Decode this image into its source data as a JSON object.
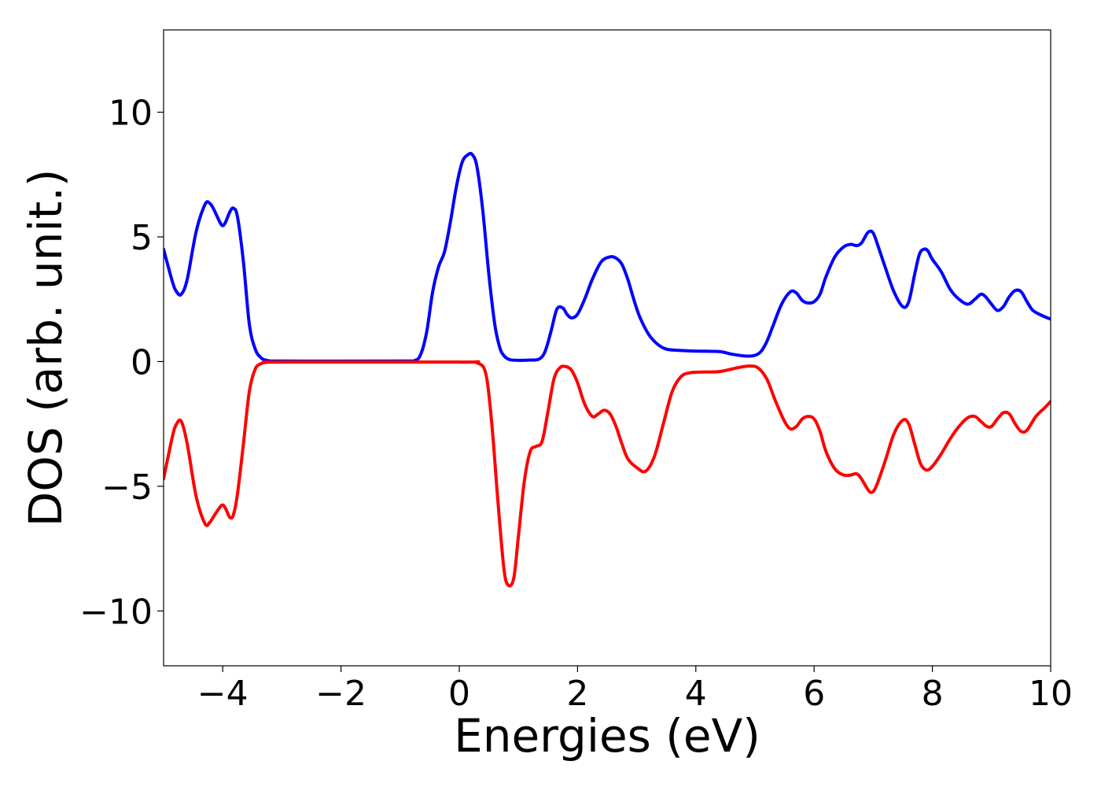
{
  "chart_data": {
    "type": "line",
    "xlabel": "Energies (eV)",
    "ylabel": "DOS (arb. unit.)",
    "xlim": [
      -5,
      10
    ],
    "ylim": [
      -12.2,
      13.3
    ],
    "xticks": [
      -4,
      -2,
      0,
      2,
      4,
      6,
      8,
      10
    ],
    "yticks": [
      -10,
      -5,
      0,
      5,
      10
    ],
    "xtick_labels": [
      "−4",
      "−2",
      "0",
      "2",
      "4",
      "6",
      "8",
      "10"
    ],
    "ytick_labels": [
      "−10",
      "−5",
      "0",
      "5",
      "10"
    ],
    "grid": false,
    "legend": "none",
    "series": [
      {
        "color": "#0000ff",
        "x": [
          -5.0,
          -4.85,
          -4.78,
          -4.7,
          -4.6,
          -4.45,
          -4.3,
          -4.22,
          -4.15,
          -4.05,
          -4.0,
          -3.95,
          -3.88,
          -3.82,
          -3.75,
          -3.65,
          -3.55,
          -3.45,
          -3.35,
          -3.25,
          -3.0,
          -1.0,
          -0.75,
          -0.65,
          -0.55,
          -0.45,
          -0.35,
          -0.25,
          -0.15,
          -0.05,
          0.05,
          0.15,
          0.22,
          0.3,
          0.4,
          0.5,
          0.6,
          0.68,
          0.75,
          0.85,
          1.0,
          1.2,
          1.35,
          1.45,
          1.55,
          1.65,
          1.75,
          1.82,
          1.9,
          2.0,
          2.12,
          2.25,
          2.4,
          2.55,
          2.65,
          2.75,
          2.85,
          2.95,
          3.05,
          3.2,
          3.35,
          3.5,
          3.7,
          4.0,
          4.4,
          4.6,
          4.85,
          5.0,
          5.1,
          5.2,
          5.3,
          5.45,
          5.6,
          5.7,
          5.8,
          5.9,
          6.0,
          6.1,
          6.2,
          6.35,
          6.5,
          6.62,
          6.72,
          6.8,
          6.85,
          6.92,
          7.0,
          7.1,
          7.2,
          7.35,
          7.5,
          7.6,
          7.7,
          7.78,
          7.85,
          7.92,
          8.0,
          8.15,
          8.3,
          8.45,
          8.6,
          8.72,
          8.82,
          8.9,
          9.0,
          9.1,
          9.2,
          9.3,
          9.4,
          9.5,
          9.6,
          9.7,
          9.85,
          10.0
        ],
        "y": [
          4.5,
          3.2,
          2.8,
          2.7,
          3.3,
          5.2,
          6.3,
          6.35,
          6.1,
          5.6,
          5.45,
          5.6,
          6.0,
          6.15,
          5.8,
          4.0,
          1.5,
          0.5,
          0.15,
          0.05,
          0.02,
          0.02,
          0.05,
          0.3,
          1.2,
          2.8,
          3.8,
          4.4,
          5.6,
          7.0,
          8.0,
          8.3,
          8.3,
          7.8,
          6.0,
          3.5,
          1.5,
          0.6,
          0.25,
          0.08,
          0.05,
          0.06,
          0.1,
          0.4,
          1.2,
          2.1,
          2.15,
          1.9,
          1.75,
          1.9,
          2.5,
          3.3,
          4.0,
          4.2,
          4.15,
          3.9,
          3.3,
          2.5,
          1.8,
          1.1,
          0.7,
          0.5,
          0.45,
          0.42,
          0.4,
          0.3,
          0.22,
          0.25,
          0.4,
          0.8,
          1.4,
          2.3,
          2.8,
          2.75,
          2.45,
          2.35,
          2.4,
          2.7,
          3.4,
          4.2,
          4.6,
          4.7,
          4.65,
          4.75,
          4.95,
          5.2,
          5.15,
          4.5,
          3.8,
          2.8,
          2.2,
          2.4,
          3.5,
          4.3,
          4.5,
          4.45,
          4.1,
          3.6,
          2.9,
          2.5,
          2.3,
          2.5,
          2.7,
          2.6,
          2.3,
          2.05,
          2.2,
          2.6,
          2.85,
          2.8,
          2.4,
          2.05,
          1.85,
          1.7
        ]
      },
      {
        "color": "#ff0000",
        "x": [
          -5.0,
          -4.85,
          -4.78,
          -4.7,
          -4.6,
          -4.45,
          -4.3,
          -4.22,
          -4.15,
          -4.05,
          -4.0,
          -3.95,
          -3.88,
          -3.82,
          -3.75,
          -3.65,
          -3.55,
          -3.45,
          -3.35,
          -3.25,
          -3.0,
          0.0,
          0.3,
          0.45,
          0.55,
          0.65,
          0.75,
          0.82,
          0.92,
          1.0,
          1.1,
          1.2,
          1.3,
          1.4,
          1.5,
          1.6,
          1.7,
          1.8,
          1.9,
          2.0,
          2.12,
          2.25,
          2.35,
          2.45,
          2.55,
          2.65,
          2.75,
          2.85,
          3.0,
          3.15,
          3.3,
          3.45,
          3.6,
          3.75,
          3.9,
          4.1,
          4.4,
          4.7,
          4.9,
          5.05,
          5.2,
          5.35,
          5.5,
          5.6,
          5.7,
          5.8,
          5.9,
          6.0,
          6.1,
          6.2,
          6.35,
          6.5,
          6.62,
          6.72,
          6.8,
          6.9,
          6.97,
          7.05,
          7.2,
          7.35,
          7.5,
          7.6,
          7.7,
          7.8,
          7.9,
          8.0,
          8.15,
          8.3,
          8.45,
          8.6,
          8.72,
          8.82,
          8.92,
          9.0,
          9.1,
          9.2,
          9.3,
          9.4,
          9.5,
          9.6,
          9.75,
          9.9,
          10.0
        ],
        "y": [
          -4.7,
          -3.0,
          -2.5,
          -2.4,
          -3.3,
          -5.4,
          -6.5,
          -6.45,
          -6.2,
          -5.85,
          -5.75,
          -5.9,
          -6.25,
          -6.15,
          -5.3,
          -3.3,
          -1.2,
          -0.3,
          -0.08,
          -0.03,
          -0.02,
          -0.02,
          -0.05,
          -0.5,
          -2.5,
          -5.5,
          -8.2,
          -8.95,
          -8.7,
          -7.0,
          -4.8,
          -3.6,
          -3.4,
          -3.2,
          -2.0,
          -0.7,
          -0.25,
          -0.2,
          -0.35,
          -0.85,
          -1.7,
          -2.2,
          -2.1,
          -1.95,
          -2.1,
          -2.6,
          -3.3,
          -3.9,
          -4.25,
          -4.4,
          -3.8,
          -2.5,
          -1.2,
          -0.6,
          -0.45,
          -0.42,
          -0.4,
          -0.25,
          -0.18,
          -0.25,
          -0.7,
          -1.6,
          -2.4,
          -2.7,
          -2.6,
          -2.3,
          -2.2,
          -2.3,
          -2.8,
          -3.6,
          -4.3,
          -4.55,
          -4.55,
          -4.5,
          -4.7,
          -5.1,
          -5.25,
          -5.0,
          -4.0,
          -2.9,
          -2.35,
          -2.5,
          -3.3,
          -4.1,
          -4.35,
          -4.2,
          -3.7,
          -3.1,
          -2.6,
          -2.25,
          -2.2,
          -2.4,
          -2.6,
          -2.6,
          -2.3,
          -2.05,
          -2.1,
          -2.5,
          -2.8,
          -2.75,
          -2.2,
          -1.85,
          -1.6
        ]
      }
    ]
  }
}
